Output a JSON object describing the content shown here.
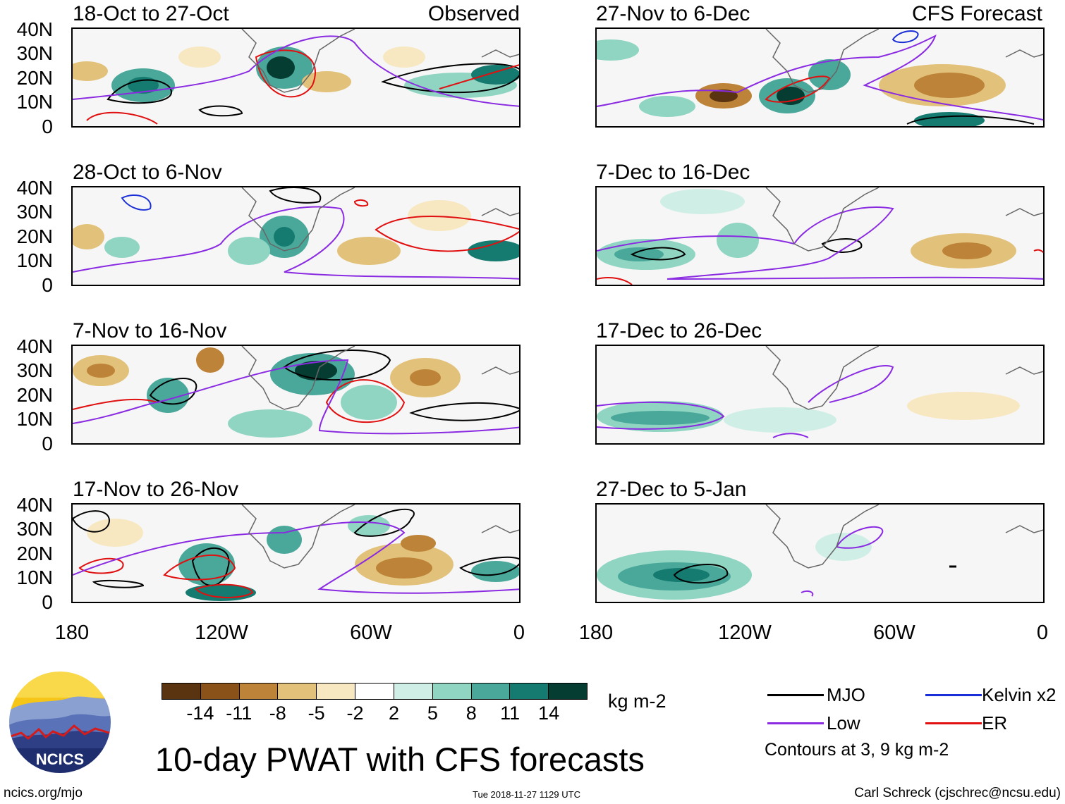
{
  "panels": {
    "left": [
      {
        "title": "18-Oct to 27-Oct",
        "tag": "Observed"
      },
      {
        "title": "28-Oct to 6-Nov",
        "tag": ""
      },
      {
        "title": "7-Nov to 16-Nov",
        "tag": ""
      },
      {
        "title": "17-Nov to 26-Nov",
        "tag": ""
      }
    ],
    "right": [
      {
        "title": "27-Nov to 6-Dec",
        "tag": "CFS Forecast"
      },
      {
        "title": "7-Dec to 16-Dec",
        "tag": ""
      },
      {
        "title": "17-Dec to 26-Dec",
        "tag": ""
      },
      {
        "title": "27-Dec to 5-Jan",
        "tag": ""
      }
    ]
  },
  "y_axis": [
    "40N",
    "30N",
    "20N",
    "10N",
    "0"
  ],
  "x_axis": [
    "180",
    "120W",
    "60W",
    "0"
  ],
  "colorbar": {
    "colors": [
      "#5a3310",
      "#8a5218",
      "#bd8338",
      "#e2c27a",
      "#f7e8c2",
      "#ffffff",
      "#cfefe6",
      "#8fd5c2",
      "#4aa89a",
      "#157a6f",
      "#063d33"
    ],
    "labels": [
      "-14",
      "-11",
      "-8",
      "-5",
      "-2",
      "2",
      "5",
      "8",
      "11",
      "14"
    ],
    "units": "kg m-2"
  },
  "title": "10-day PWAT with CFS forecasts",
  "legend": {
    "items": [
      {
        "label": "MJO",
        "color": "#000000"
      },
      {
        "label": "Kelvin x2",
        "color": "#1a2fd6"
      },
      {
        "label": "Low",
        "color": "#8a2be2"
      },
      {
        "label": "ER",
        "color": "#e01010"
      }
    ],
    "contours_note": "Contours at 3, 9 kg m-2"
  },
  "footer": {
    "website": "ncics.org/mjo",
    "timestamp": "Tue 2018-11-27 1129 UTC",
    "credit": "Carl Schreck (cjschrec@ncsu.edu)"
  },
  "logo_text": "NCICS"
}
